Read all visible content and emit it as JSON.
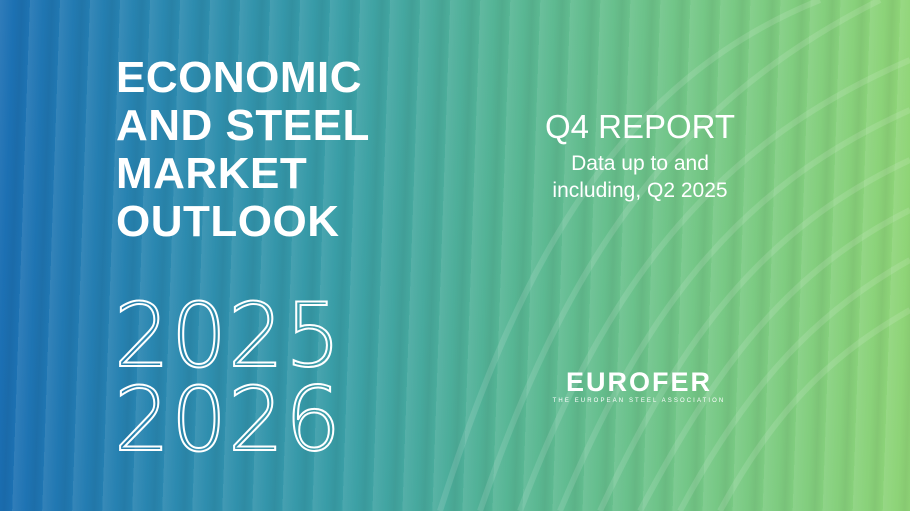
{
  "title_lines": [
    "ECONOMIC",
    "AND STEEL",
    "MARKET",
    "OUTLOOK"
  ],
  "years": [
    "2025",
    "2026"
  ],
  "report": {
    "label": "Q4 REPORT",
    "subtitle_lines": [
      "Data up to and",
      "including, Q2 2025"
    ]
  },
  "logo": {
    "name": "EUROFER",
    "tagline": "THE EUROPEAN STEEL ASSOCIATION"
  },
  "colors": {
    "left": "#1b6fb3",
    "middle": "#3a9fa6",
    "right": "#8fd577"
  }
}
